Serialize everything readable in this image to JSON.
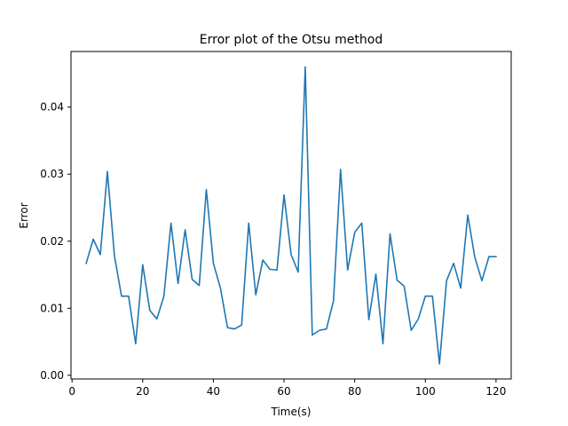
{
  "chart_data": {
    "type": "line",
    "title": "Error plot of the Otsu method",
    "xlabel": "Time(s)",
    "ylabel": "Error",
    "xlim": [
      -0.3,
      124.3
    ],
    "ylim": [
      -0.00055,
      0.0483
    ],
    "xticks": [
      0,
      20,
      40,
      60,
      80,
      100,
      120
    ],
    "xtick_labels": [
      "0",
      "20",
      "40",
      "60",
      "80",
      "100",
      "120"
    ],
    "yticks": [
      0.0,
      0.01,
      0.02,
      0.03,
      0.04
    ],
    "ytick_labels": [
      "0.00",
      "0.01",
      "0.02",
      "0.03",
      "0.04"
    ],
    "grid": false,
    "series": [
      {
        "color": "#1f77b4",
        "x": [
          4,
          6,
          8,
          10,
          12,
          14,
          16,
          18,
          20,
          22,
          24,
          26,
          28,
          30,
          32,
          34,
          36,
          38,
          40,
          42,
          44,
          46,
          48,
          50,
          52,
          54,
          56,
          58,
          60,
          62,
          64,
          66,
          68,
          70,
          72,
          74,
          76,
          78,
          80,
          82,
          84,
          86,
          88,
          90,
          92,
          94,
          96,
          98,
          100,
          102,
          104,
          106,
          108,
          110,
          112,
          114,
          116,
          118,
          120
        ],
        "y": [
          0.0167,
          0.0203,
          0.018,
          0.0304,
          0.0178,
          0.0118,
          0.0118,
          0.0047,
          0.0165,
          0.0097,
          0.0084,
          0.0118,
          0.0227,
          0.0137,
          0.0217,
          0.0143,
          0.0134,
          0.0277,
          0.0167,
          0.013,
          0.0071,
          0.0069,
          0.0075,
          0.0227,
          0.012,
          0.0172,
          0.0158,
          0.0157,
          0.0269,
          0.018,
          0.0154,
          0.046,
          0.006,
          0.0067,
          0.0069,
          0.0111,
          0.0307,
          0.0157,
          0.0213,
          0.0227,
          0.0083,
          0.0151,
          0.0047,
          0.0211,
          0.0142,
          0.0133,
          0.0067,
          0.0084,
          0.0118,
          0.0118,
          0.0017,
          0.0141,
          0.0167,
          0.013,
          0.0239,
          0.0176,
          0.0141,
          0.0177,
          0.0177
        ]
      }
    ]
  }
}
